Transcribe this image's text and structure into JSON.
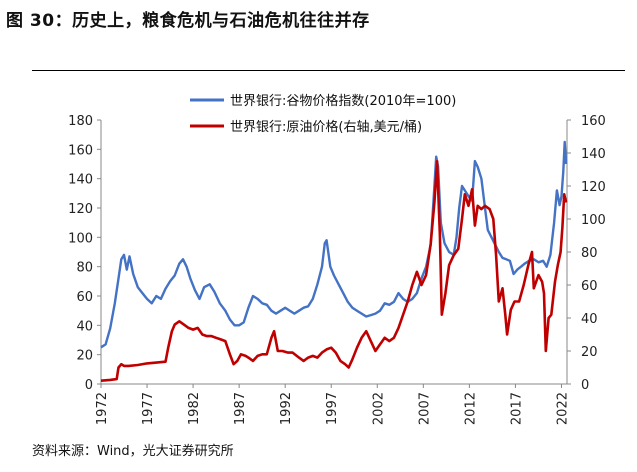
{
  "figure": {
    "title": "图 30：历史上，粮食危机与石油危机往往并存",
    "source": "资料来源：Wind，光大证券研究所"
  },
  "chart_data": {
    "type": "line",
    "legend_position": "top",
    "grid": false,
    "x_ticks": [
      "1972",
      "1977",
      "1982",
      "1987",
      "1992",
      "1997",
      "2002",
      "2007",
      "2012",
      "2017",
      "2022"
    ],
    "x_range": [
      1972.0,
      2022.6
    ],
    "y_left": {
      "range": [
        0,
        180
      ],
      "ticks": [
        "0",
        "20",
        "40",
        "60",
        "80",
        "100",
        "120",
        "140",
        "160",
        "180"
      ]
    },
    "y_right": {
      "range": [
        0,
        160
      ],
      "ticks": [
        "0",
        "20",
        "40",
        "60",
        "80",
        "100",
        "120",
        "140",
        "160"
      ]
    },
    "series": [
      {
        "name": "世界银行:谷物价格指数(2010年=100)",
        "axis": "left",
        "color": "#4472c4",
        "points": [
          [
            1972.0,
            25
          ],
          [
            1972.5,
            27
          ],
          [
            1973.0,
            38
          ],
          [
            1973.5,
            55
          ],
          [
            1973.9,
            72
          ],
          [
            1974.2,
            85
          ],
          [
            1974.5,
            88
          ],
          [
            1974.8,
            78
          ],
          [
            1975.1,
            87
          ],
          [
            1975.5,
            75
          ],
          [
            1976.0,
            66
          ],
          [
            1976.5,
            62
          ],
          [
            1977.0,
            58
          ],
          [
            1977.5,
            55
          ],
          [
            1978.0,
            60
          ],
          [
            1978.5,
            58
          ],
          [
            1979.0,
            65
          ],
          [
            1979.5,
            70
          ],
          [
            1980.0,
            74
          ],
          [
            1980.5,
            82
          ],
          [
            1980.9,
            85
          ],
          [
            1981.3,
            80
          ],
          [
            1981.7,
            72
          ],
          [
            1982.2,
            64
          ],
          [
            1982.7,
            58
          ],
          [
            1983.2,
            66
          ],
          [
            1983.8,
            68
          ],
          [
            1984.3,
            63
          ],
          [
            1984.9,
            55
          ],
          [
            1985.5,
            50
          ],
          [
            1986.0,
            44
          ],
          [
            1986.5,
            40
          ],
          [
            1987.0,
            40
          ],
          [
            1987.5,
            42
          ],
          [
            1988.0,
            52
          ],
          [
            1988.5,
            60
          ],
          [
            1989.0,
            58
          ],
          [
            1989.5,
            55
          ],
          [
            1990.0,
            54
          ],
          [
            1990.5,
            50
          ],
          [
            1991.0,
            48
          ],
          [
            1991.5,
            50
          ],
          [
            1992.0,
            52
          ],
          [
            1992.5,
            50
          ],
          [
            1993.0,
            48
          ],
          [
            1993.5,
            50
          ],
          [
            1994.0,
            52
          ],
          [
            1994.5,
            53
          ],
          [
            1995.0,
            58
          ],
          [
            1995.5,
            68
          ],
          [
            1996.0,
            80
          ],
          [
            1996.3,
            96
          ],
          [
            1996.5,
            98
          ],
          [
            1996.9,
            80
          ],
          [
            1997.3,
            74
          ],
          [
            1997.8,
            68
          ],
          [
            1998.3,
            62
          ],
          [
            1998.8,
            56
          ],
          [
            1999.3,
            52
          ],
          [
            1999.8,
            50
          ],
          [
            2000.3,
            48
          ],
          [
            2000.8,
            46
          ],
          [
            2001.3,
            47
          ],
          [
            2001.8,
            48
          ],
          [
            2002.3,
            50
          ],
          [
            2002.8,
            55
          ],
          [
            2003.3,
            54
          ],
          [
            2003.8,
            56
          ],
          [
            2004.3,
            62
          ],
          [
            2004.8,
            58
          ],
          [
            2005.3,
            56
          ],
          [
            2005.8,
            58
          ],
          [
            2006.3,
            62
          ],
          [
            2006.8,
            72
          ],
          [
            2007.3,
            80
          ],
          [
            2007.8,
            95
          ],
          [
            2008.1,
            125
          ],
          [
            2008.4,
            155
          ],
          [
            2008.6,
            148
          ],
          [
            2008.9,
            110
          ],
          [
            2009.3,
            96
          ],
          [
            2009.8,
            90
          ],
          [
            2010.3,
            88
          ],
          [
            2010.6,
            100
          ],
          [
            2010.9,
            120
          ],
          [
            2011.2,
            135
          ],
          [
            2011.5,
            132
          ],
          [
            2011.9,
            128
          ],
          [
            2012.3,
            125
          ],
          [
            2012.6,
            152
          ],
          [
            2012.9,
            148
          ],
          [
            2013.3,
            140
          ],
          [
            2013.7,
            120
          ],
          [
            2014.0,
            105
          ],
          [
            2014.4,
            100
          ],
          [
            2014.8,
            95
          ],
          [
            2015.2,
            90
          ],
          [
            2015.6,
            86
          ],
          [
            2016.0,
            85
          ],
          [
            2016.4,
            84
          ],
          [
            2016.8,
            75
          ],
          [
            2017.2,
            78
          ],
          [
            2017.6,
            80
          ],
          [
            2018.0,
            82
          ],
          [
            2018.5,
            84
          ],
          [
            2019.0,
            85
          ],
          [
            2019.5,
            83
          ],
          [
            2020.0,
            84
          ],
          [
            2020.4,
            80
          ],
          [
            2020.8,
            88
          ],
          [
            2021.2,
            110
          ],
          [
            2021.5,
            132
          ],
          [
            2021.8,
            122
          ],
          [
            2022.0,
            128
          ],
          [
            2022.2,
            145
          ],
          [
            2022.35,
            165
          ],
          [
            2022.5,
            150
          ]
        ]
      },
      {
        "name": "世界银行:原油价格(右轴,美元/桶)",
        "axis": "right",
        "color": "#c00000",
        "points": [
          [
            1972.0,
            2
          ],
          [
            1973.0,
            2.5
          ],
          [
            1973.7,
            3
          ],
          [
            1973.9,
            10
          ],
          [
            1974.2,
            12
          ],
          [
            1974.5,
            11
          ],
          [
            1975.0,
            11
          ],
          [
            1976.0,
            11.5
          ],
          [
            1977.0,
            12.5
          ],
          [
            1978.0,
            13
          ],
          [
            1979.0,
            13.5
          ],
          [
            1979.3,
            22
          ],
          [
            1979.7,
            32
          ],
          [
            1980.0,
            36
          ],
          [
            1980.5,
            38
          ],
          [
            1981.0,
            36
          ],
          [
            1981.5,
            34
          ],
          [
            1982.0,
            33
          ],
          [
            1982.5,
            34
          ],
          [
            1983.0,
            30
          ],
          [
            1983.5,
            29
          ],
          [
            1984.0,
            29
          ],
          [
            1984.5,
            28
          ],
          [
            1985.0,
            27
          ],
          [
            1985.5,
            26
          ],
          [
            1986.0,
            18
          ],
          [
            1986.4,
            12
          ],
          [
            1986.8,
            14
          ],
          [
            1987.2,
            18
          ],
          [
            1987.7,
            17
          ],
          [
            1988.0,
            16
          ],
          [
            1988.5,
            14
          ],
          [
            1989.0,
            17
          ],
          [
            1989.5,
            18
          ],
          [
            1990.0,
            18
          ],
          [
            1990.5,
            28
          ],
          [
            1990.8,
            32
          ],
          [
            1991.2,
            20
          ],
          [
            1991.7,
            20
          ],
          [
            1992.3,
            19
          ],
          [
            1992.8,
            19
          ],
          [
            1993.5,
            16
          ],
          [
            1994.0,
            14
          ],
          [
            1994.5,
            16
          ],
          [
            1995.0,
            17
          ],
          [
            1995.5,
            16
          ],
          [
            1996.0,
            19
          ],
          [
            1996.5,
            21
          ],
          [
            1997.0,
            22
          ],
          [
            1997.5,
            19
          ],
          [
            1998.0,
            14
          ],
          [
            1998.5,
            12
          ],
          [
            1998.9,
            10
          ],
          [
            1999.3,
            15
          ],
          [
            1999.8,
            22
          ],
          [
            2000.3,
            28
          ],
          [
            2000.8,
            32
          ],
          [
            2001.3,
            26
          ],
          [
            2001.8,
            20
          ],
          [
            2002.3,
            24
          ],
          [
            2002.8,
            28
          ],
          [
            2003.3,
            26
          ],
          [
            2003.8,
            28
          ],
          [
            2004.3,
            34
          ],
          [
            2004.8,
            42
          ],
          [
            2005.3,
            50
          ],
          [
            2005.8,
            60
          ],
          [
            2006.3,
            68
          ],
          [
            2006.8,
            60
          ],
          [
            2007.3,
            66
          ],
          [
            2007.8,
            85
          ],
          [
            2008.2,
            110
          ],
          [
            2008.5,
            135
          ],
          [
            2008.8,
            90
          ],
          [
            2009.0,
            42
          ],
          [
            2009.4,
            55
          ],
          [
            2009.8,
            72
          ],
          [
            2010.3,
            78
          ],
          [
            2010.8,
            82
          ],
          [
            2011.2,
            100
          ],
          [
            2011.5,
            115
          ],
          [
            2011.9,
            108
          ],
          [
            2012.3,
            118
          ],
          [
            2012.6,
            96
          ],
          [
            2012.9,
            108
          ],
          [
            2013.3,
            106
          ],
          [
            2013.7,
            108
          ],
          [
            2014.2,
            106
          ],
          [
            2014.6,
            100
          ],
          [
            2014.9,
            78
          ],
          [
            2015.2,
            50
          ],
          [
            2015.6,
            58
          ],
          [
            2015.9,
            42
          ],
          [
            2016.1,
            30
          ],
          [
            2016.5,
            45
          ],
          [
            2016.9,
            50
          ],
          [
            2017.4,
            50
          ],
          [
            2017.9,
            60
          ],
          [
            2018.4,
            72
          ],
          [
            2018.8,
            80
          ],
          [
            2019.0,
            58
          ],
          [
            2019.5,
            66
          ],
          [
            2019.9,
            62
          ],
          [
            2020.1,
            55
          ],
          [
            2020.3,
            20
          ],
          [
            2020.6,
            40
          ],
          [
            2020.9,
            42
          ],
          [
            2021.3,
            62
          ],
          [
            2021.6,
            72
          ],
          [
            2021.9,
            80
          ],
          [
            2022.1,
            95
          ],
          [
            2022.3,
            115
          ],
          [
            2022.5,
            110
          ]
        ]
      }
    ]
  }
}
